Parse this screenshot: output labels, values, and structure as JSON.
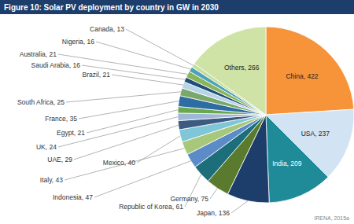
{
  "chart_data": {
    "type": "pie",
    "title": "Figure 10: Solar PV deployment by country in GW in 2030",
    "annotations": [
      "IRENA, 2015a"
    ],
    "categories": [
      "China",
      "USA",
      "India",
      "Japan",
      "Germany",
      "Republic of Korea",
      "Indonesia",
      "Italy",
      "Mexico",
      "UAE",
      "UK",
      "Egypt",
      "France",
      "South Africa",
      "Brazil",
      "Saudi Arabia",
      "Australia",
      "Nigeria",
      "Canada",
      "Others"
    ],
    "values": [
      422,
      237,
      209,
      136,
      75,
      61,
      47,
      43,
      40,
      29,
      24,
      21,
      35,
      25,
      21,
      16,
      21,
      16,
      13,
      266
    ],
    "colors": [
      "#f7943a",
      "#d2e3f3",
      "#1f8a98",
      "#1d3d6b",
      "#5a7a2e",
      "#1c6f7a",
      "#5b8cc8",
      "#a7c77a",
      "#7fc6d8",
      "#3d5a80",
      "#9fb8d8",
      "#6aa84f",
      "#2e6da4",
      "#79a86a",
      "#b8d4e8",
      "#1f4e79",
      "#8ab55a",
      "#4aa3b8",
      "#c7dca0",
      "#cfe3a6"
    ],
    "data_labels": true
  }
}
